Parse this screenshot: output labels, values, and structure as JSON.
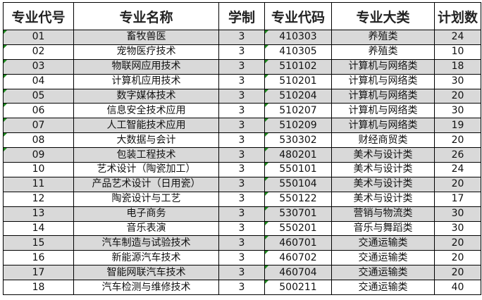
{
  "headers": [
    "专业代号",
    "专业名称",
    "学制",
    "专业代码",
    "专业大类",
    "计划数"
  ],
  "rows": [
    [
      "01",
      "畜牧兽医",
      "3",
      "410303",
      "养殖类",
      "24"
    ],
    [
      "02",
      "宠物医疗技术",
      "3",
      "410305",
      "养殖类",
      "10"
    ],
    [
      "03",
      "物联网应用技术",
      "3",
      "510102",
      "计算机与网络类",
      "18"
    ],
    [
      "04",
      "计算机应用技术",
      "3",
      "510201",
      "计算机与网络类",
      "30"
    ],
    [
      "05",
      "数字媒体技术",
      "3",
      "510204",
      "计算机与网络类",
      "20"
    ],
    [
      "06",
      "信息安全技术应用",
      "3",
      "510207",
      "计算机与网络类",
      "30"
    ],
    [
      "07",
      "人工智能技术应用",
      "3",
      "510209",
      "计算机与网络类",
      "19"
    ],
    [
      "08",
      "大数据与会计",
      "3",
      "530302",
      "财经商贸类",
      "20"
    ],
    [
      "09",
      "包装工程技术",
      "3",
      "480201",
      "美术与设计类",
      "26"
    ],
    [
      "10",
      "艺术设计（陶瓷加工）",
      "3",
      "550101",
      "美术与设计类",
      "24"
    ],
    [
      "11",
      "产品艺术设计（日用瓷）",
      "3",
      "550104",
      "美术与设计类",
      "20"
    ],
    [
      "12",
      "陶瓷设计与工艺",
      "3",
      "550122",
      "美术与设计类",
      "17"
    ],
    [
      "13",
      "电子商务",
      "3",
      "530701",
      "营销与物流类",
      "30"
    ],
    [
      "14",
      "音乐表演",
      "3",
      "550201",
      "音乐与舞蹈类",
      "30"
    ],
    [
      "15",
      "汽车制造与试验技术",
      "3",
      "460701",
      "交通运输类",
      "20"
    ],
    [
      "16",
      "新能源汽车技术",
      "3",
      "460702",
      "交通运输类",
      "20"
    ],
    [
      "17",
      "智能网联汽车技术",
      "3",
      "460704",
      "交通运输类",
      "20"
    ],
    [
      "18",
      "汽车检测与维修技术",
      "3",
      "500211",
      "交通运输类",
      "40"
    ]
  ],
  "colors": {
    "stripe": "#d9d9d9",
    "marker": "#1e8a1e"
  }
}
